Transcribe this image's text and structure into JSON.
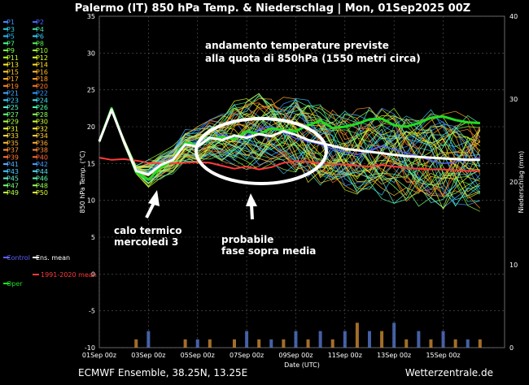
{
  "header": {
    "title": "Palermo  (IT)  850 hPa Temp. & Niederschlag | Mon, 01Sep2025 00Z"
  },
  "footer": {
    "left": "ECMWF Ensemble, 38.25N, 13.25E",
    "right": "Wetterzentrale.de"
  },
  "annotations": {
    "top_line1": "andamento temperature previste",
    "top_line2": "alla quota di 850hPa (1550 metri circa)",
    "cold_line1": "calo termico",
    "cold_line2": "mercoledì 3",
    "warm_line1": "probabile",
    "warm_line2": "fase sopra media"
  },
  "colors": {
    "background": "#000000",
    "grid": "#5a5a5a",
    "climate_mean": "#ff3b3b",
    "ens_mean": "#ffffff",
    "oper": "#22dd22",
    "control": "#6060ff",
    "annotation_circle": "#ffffff",
    "annotation_arrow": "#ffffff"
  },
  "legend": {
    "placement": "left",
    "members": [
      {
        "label": "P1",
        "color": "#3d8bff"
      },
      {
        "label": "P2",
        "color": "#4466ff"
      },
      {
        "label": "P3",
        "color": "#2ecfe0"
      },
      {
        "label": "P4",
        "color": "#44e0a0"
      },
      {
        "label": "P5",
        "color": "#22c0ff"
      },
      {
        "label": "P6",
        "color": "#33d0ff"
      },
      {
        "label": "P7",
        "color": "#44ff88"
      },
      {
        "label": "P8",
        "color": "#55ee55"
      },
      {
        "label": "P9",
        "color": "#77ff44"
      },
      {
        "label": "P10",
        "color": "#99ff33"
      },
      {
        "label": "P11",
        "color": "#bbff22"
      },
      {
        "label": "P12",
        "color": "#ddff22"
      },
      {
        "label": "P13",
        "color": "#ffee22"
      },
      {
        "label": "P14",
        "color": "#ffdd22"
      },
      {
        "label": "P15",
        "color": "#ffcc22"
      },
      {
        "label": "P16",
        "color": "#ffbb22"
      },
      {
        "label": "P17",
        "color": "#ffaa22"
      },
      {
        "label": "P18",
        "color": "#ff9922"
      },
      {
        "label": "P19",
        "color": "#ff8822"
      },
      {
        "label": "P20",
        "color": "#ff7722"
      },
      {
        "label": "P21",
        "color": "#44aaff"
      },
      {
        "label": "P22",
        "color": "#3399ff"
      },
      {
        "label": "P23",
        "color": "#33ccff"
      },
      {
        "label": "P24",
        "color": "#44ddee"
      },
      {
        "label": "P25",
        "color": "#55eecc"
      },
      {
        "label": "P26",
        "color": "#44ffaa"
      },
      {
        "label": "P27",
        "color": "#66ff77"
      },
      {
        "label": "P28",
        "color": "#88ff55"
      },
      {
        "label": "P29",
        "color": "#aaff44"
      },
      {
        "label": "P30",
        "color": "#ccff33"
      },
      {
        "label": "P31",
        "color": "#eeff33"
      },
      {
        "label": "P32",
        "color": "#ffee33"
      },
      {
        "label": "P33",
        "color": "#ffdd33"
      },
      {
        "label": "P34",
        "color": "#ffcc33"
      },
      {
        "label": "P35",
        "color": "#ffbb33"
      },
      {
        "label": "P36",
        "color": "#ffaa33"
      },
      {
        "label": "P37",
        "color": "#ff9933"
      },
      {
        "label": "P38",
        "color": "#ff8833"
      },
      {
        "label": "P39",
        "color": "#ff7733"
      },
      {
        "label": "P40",
        "color": "#ff6633"
      },
      {
        "label": "P41",
        "color": "#55aaff"
      },
      {
        "label": "P42",
        "color": "#4499ff"
      },
      {
        "label": "P43",
        "color": "#44ccff"
      },
      {
        "label": "P44",
        "color": "#55ddee"
      },
      {
        "label": "P45",
        "color": "#66eecc"
      },
      {
        "label": "P46",
        "color": "#55ffaa"
      },
      {
        "label": "P47",
        "color": "#77ff77"
      },
      {
        "label": "P48",
        "color": "#99ff55"
      },
      {
        "label": "P49",
        "color": "#bbff44"
      },
      {
        "label": "P50",
        "color": "#ddff33"
      }
    ],
    "special": [
      {
        "label": "Control",
        "color": "#6060ff"
      },
      {
        "label": "Ens. mean",
        "color": "#ffffff"
      },
      {
        "label": "1991-2020 mean",
        "color": "#ff3b3b"
      },
      {
        "label": "Oper",
        "color": "#22dd22"
      }
    ]
  },
  "chart_data": {
    "type": "line",
    "title": "Palermo  (IT)  850 hPa Temp. & Niederschlag | Mon, 01Sep2025 00Z",
    "xlabel": "Date (UTC)",
    "ylabel": "850 hPa Temp. (°C)",
    "y2label": "Niederschlag (mm)",
    "ylim": [
      -10,
      35
    ],
    "y2lim": [
      0,
      40
    ],
    "yticks": [
      -10,
      -5,
      0,
      5,
      10,
      15,
      20,
      25,
      30,
      35
    ],
    "y2ticks": [
      0,
      10,
      20,
      30,
      40
    ],
    "xticks": [
      "01Sep 00z",
      "03Sep 00z",
      "05Sep 00z",
      "07Sep 00z",
      "09Sep 00z",
      "11Sep 00z",
      "13Sep 00z",
      "15Sep 00z"
    ],
    "x_days": [
      0,
      0.5,
      1,
      1.5,
      2,
      2.5,
      3,
      3.5,
      4,
      4.5,
      5,
      5.5,
      6,
      6.5,
      7,
      7.5,
      8,
      8.5,
      9,
      9.5,
      10,
      10.5,
      11,
      11.5,
      12,
      12.5,
      13,
      13.5,
      14,
      14.5,
      15,
      15.5
    ],
    "grid": true,
    "series": [
      {
        "name": "1991-2020 mean",
        "values": [
          15.8,
          15.5,
          15.6,
          15.4,
          15.1,
          15.0,
          15.0,
          15.1,
          15.2,
          15.1,
          14.7,
          14.3,
          14.6,
          14.2,
          14.5,
          15.1,
          15.3,
          15.2,
          15.0,
          14.9,
          14.9,
          14.7,
          14.6,
          14.8,
          14.6,
          14.4,
          14.3,
          14.2,
          14.2,
          14.1,
          14.0,
          14.0
        ]
      },
      {
        "name": "Ens. mean",
        "values": [
          18.0,
          22.3,
          18.0,
          14.0,
          13.5,
          14.8,
          15.5,
          17.6,
          17.3,
          18.5,
          18.2,
          18.8,
          18.5,
          19.0,
          18.7,
          19.4,
          18.9,
          18.2,
          17.8,
          17.4,
          17.0,
          16.8,
          16.6,
          16.4,
          16.2,
          16.0,
          15.9,
          15.8,
          15.7,
          15.6,
          15.5,
          15.5
        ]
      },
      {
        "name": "Oper",
        "values": [
          18.0,
          22.5,
          18.0,
          13.8,
          12.8,
          14.5,
          15.5,
          17.8,
          17.5,
          18.3,
          18.6,
          18.3,
          19.4,
          19.0,
          19.8,
          19.5,
          19.4,
          20.2,
          20.8,
          19.8,
          20.0,
          20.4,
          21.0,
          21.1,
          20.2,
          20.0,
          20.5,
          21.2,
          21.4,
          20.9,
          20.6,
          20.5
        ]
      },
      {
        "name": "Control",
        "values": [
          18.0,
          22.4,
          18.1,
          14.2,
          13.4,
          14.6,
          15.8,
          17.4,
          17.9,
          18.1,
          19.0,
          18.4,
          18.7,
          19.6,
          20.1,
          19.2,
          18.4,
          18.0,
          17.6,
          17.0,
          16.6,
          16.2,
          16.8,
          17.4,
          16.9,
          16.4,
          16.0,
          15.4,
          15.0,
          15.2,
          15.6,
          15.8
        ]
      }
    ],
    "spread": {
      "upper": [
        18.6,
        23.0,
        19.5,
        16.0,
        15.5,
        16.4,
        17.4,
        19.6,
        20.0,
        21.2,
        22.2,
        23.5,
        23.8,
        24.5,
        24.3,
        24.0,
        24.4,
        23.6,
        23.2,
        22.8,
        22.5,
        22.4,
        22.6,
        22.6,
        22.5,
        22.4,
        22.0,
        22.3,
        22.2,
        22.1,
        22.0,
        21.9
      ],
      "lower": [
        17.4,
        21.6,
        16.5,
        12.2,
        11.6,
        12.8,
        13.6,
        15.2,
        15.0,
        15.6,
        15.2,
        14.8,
        14.2,
        14.0,
        13.8,
        13.6,
        13.2,
        12.4,
        12.0,
        11.6,
        11.2,
        10.6,
        10.2,
        9.8,
        9.6,
        9.4,
        9.2,
        9.0,
        8.8,
        8.6,
        8.5,
        8.5
      ]
    },
    "precip_mm": [
      0,
      0,
      0,
      1,
      2,
      0,
      0,
      1,
      1,
      1,
      0,
      1,
      2,
      1,
      1,
      1,
      2,
      1,
      2,
      1,
      2,
      3,
      2,
      2,
      3,
      1,
      2,
      1,
      2,
      1,
      1,
      1
    ]
  }
}
